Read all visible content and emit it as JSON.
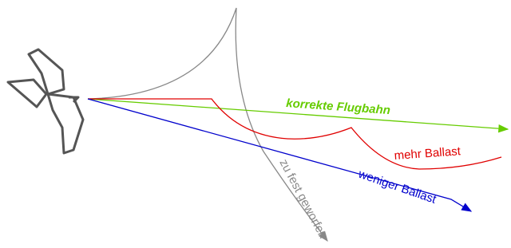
{
  "paths": [
    {
      "label": "korrekte Flugbahn"
    },
    {
      "label": "mehr Ballast"
    },
    {
      "label": "weniger Ballast"
    },
    {
      "label": "zu fest geworfen"
    }
  ]
}
